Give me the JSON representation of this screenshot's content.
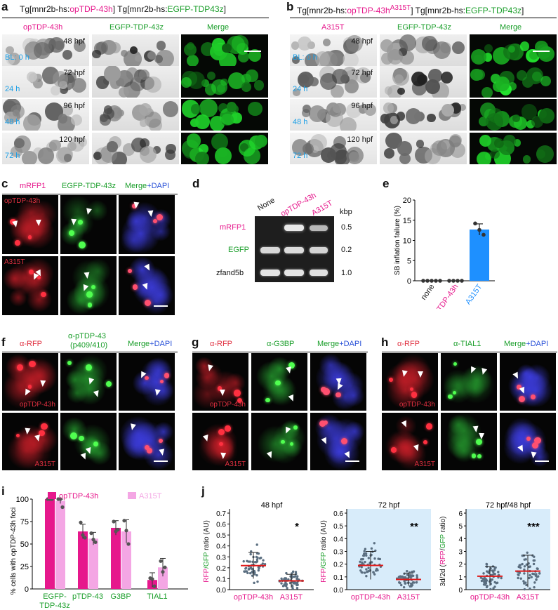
{
  "panels": {
    "a": {
      "letter": "a",
      "title_pre": "Tg[mnr2b-hs:",
      "title_red": "opTDP-43h",
      "title_mid": "] Tg[mnr2b-hs:",
      "title_green": "EGFP-TDP43z",
      "title_post": "]",
      "col1": "opTDP-43h",
      "col2": "EGFP-TDP-43z",
      "merge": "Merge",
      "rows": [
        {
          "hpf": "48 hpf",
          "time": "BL: 0 h"
        },
        {
          "hpf": "72 hpf",
          "time": "24 h"
        },
        {
          "hpf": "96 hpf",
          "time": "48 h"
        },
        {
          "hpf": "120 hpf",
          "time": "72 h"
        }
      ]
    },
    "b": {
      "letter": "b",
      "title_pre": "Tg[mnr2b-hs:",
      "title_red": "opTDP-43h",
      "title_sup": "A315T",
      "title_mid": "] Tg[mnr2b-hs:",
      "title_green": "EGFP-TDP43z",
      "title_post": "]",
      "col1": "A315T",
      "col2": "EGFP-TDP-43z",
      "merge": "Merge",
      "rows": [
        {
          "hpf": "48 hpf",
          "time": "BL: 0 h"
        },
        {
          "hpf": "72 hpf",
          "time": "24 h"
        },
        {
          "hpf": "96 hpf",
          "time": "48 h"
        },
        {
          "hpf": "120 hpf",
          "time": "72 h"
        }
      ]
    },
    "c": {
      "letter": "c",
      "col1": "mRFP1",
      "col2": "EGFP-TDP-43z",
      "merge_a": "Merge",
      "merge_b": "+DAPI",
      "row1": "opTDP-43h",
      "row2": "A315T"
    },
    "d": {
      "letter": "d",
      "lanes": [
        "None",
        "opTDP-43h",
        "A315T"
      ],
      "kbp": "kbp",
      "rows": [
        {
          "label": "mRFP1",
          "size": "0.5"
        },
        {
          "label": "EGFP",
          "size": "0.2"
        },
        {
          "label": "zfand5b",
          "size": "1.0"
        }
      ]
    },
    "f": {
      "letter": "f",
      "col1": "α-RFP",
      "col2a": "α-pTDP-43",
      "col2b": "(p409/410)",
      "merge_a": "Merge",
      "merge_b": "+DAPI",
      "row1": "opTDP-43h",
      "row2": "A315T"
    },
    "g": {
      "letter": "g",
      "col1": "α-RFP",
      "col2": "α-G3BP",
      "merge_a": "Merge",
      "merge_b": "+DAPI",
      "row1": "opTDP-43h",
      "row2": "A315T"
    },
    "h": {
      "letter": "h",
      "col1": "α-RFP",
      "col2": "α-TIAL1",
      "merge_a": "Merge",
      "merge_b": "+DAPI",
      "row1": "opTDP-43h",
      "row2": "A315T"
    },
    "j": {
      "letter": "j"
    }
  },
  "chart_data": [
    {
      "panel": "e",
      "type": "bar",
      "ylabel": "SB inflation failure (%)",
      "categories": [
        "none",
        "opTDP-43h",
        "A315T"
      ],
      "values": [
        0,
        0,
        12.7
      ],
      "points": [
        [
          0,
          0,
          0,
          0,
          0
        ],
        [
          0,
          0,
          0,
          0
        ],
        [
          14.2,
          12.6,
          11.4
        ]
      ],
      "error": [
        0,
        0,
        1.4
      ],
      "ylim": [
        0,
        20
      ],
      "yticks": [
        "0",
        "5",
        "10",
        "15",
        "20"
      ],
      "colors": {
        "none": "#111111",
        "opTDP-43h": "#e6188c",
        "A315T": "#1e90ff"
      }
    },
    {
      "panel": "i",
      "type": "bar",
      "ylabel": "% cells with opTDP-43h foci",
      "categories": [
        "EGFP-TDP-43z",
        "pTDP-43",
        "G3BP",
        "TIAL1"
      ],
      "cat_lines": [
        [
          "EGFP-",
          "TDP-43z"
        ],
        [
          "pTDP-43"
        ],
        [
          "G3BP"
        ],
        [
          "TIAL1"
        ]
      ],
      "series": [
        {
          "name": "opTDP-43h",
          "color": "#e6188c",
          "values": [
            100,
            64,
            68,
            10
          ],
          "error": [
            1,
            8,
            8,
            8
          ],
          "points": [
            [
              100,
              100,
              100
            ],
            [
              74,
              60,
              57
            ],
            [
              75,
              64,
              66
            ],
            [
              12,
              11,
              3
            ]
          ]
        },
        {
          "name": "A315T",
          "color": "#f4a6e4",
          "values": [
            98,
            56,
            64,
            24
          ],
          "error": [
            3,
            7,
            13,
            10
          ],
          "points": [
            [
              100,
              100,
              91
            ],
            [
              62,
              55,
              52
            ],
            [
              76,
              65,
              50
            ],
            [
              31,
              19,
              24
            ]
          ]
        }
      ],
      "ylim": [
        0,
        100
      ],
      "yticks": [
        "0",
        "25",
        "50",
        "75",
        "100"
      ]
    },
    {
      "panel": "j",
      "type": "scatter",
      "title": "48 hpf",
      "ylabel_a": "RFP",
      "ylabel_b": "/GFP",
      "ylabel_c": " ratio (AU)",
      "categories": [
        "opTDP-43h",
        "A315T"
      ],
      "means": [
        0.22,
        0.08
      ],
      "sd": [
        0.12,
        0.06
      ],
      "ylim": [
        0,
        0.7
      ],
      "yticks": [
        "0.0",
        "0.1",
        "0.2",
        "0.3",
        "0.4",
        "0.5",
        "0.6",
        "0.7"
      ],
      "significance": "*",
      "background": "#ffffff"
    },
    {
      "panel": "j",
      "type": "scatter",
      "title": "72 hpf",
      "ylabel_a": "RFP",
      "ylabel_b": "/GFP",
      "ylabel_c": " ratio (AU)",
      "categories": [
        "opTDP-43h",
        "A315T"
      ],
      "means": [
        0.19,
        0.08
      ],
      "sd": [
        0.11,
        0.05
      ],
      "ylim": [
        0,
        0.6
      ],
      "yticks": [
        "0.0",
        "0.1",
        "0.2",
        "0.3",
        "0.4",
        "0.5",
        "0.6"
      ],
      "significance": "**",
      "background": "#d8ecfa"
    },
    {
      "panel": "j",
      "type": "scatter",
      "title": "72 hpf/48 hpf",
      "ylabel_a": "3d/2d (",
      "ylabel_b": "RFP",
      "ylabel_c": "/",
      "ylabel_d": "GFP",
      "ylabel_e": " ratio)",
      "categories": [
        "opTDP-43h",
        "A315T"
      ],
      "means": [
        1.05,
        1.45
      ],
      "sd": [
        0.75,
        1.25
      ],
      "ylim": [
        0,
        6
      ],
      "yticks": [
        "0",
        "1",
        "2",
        "3",
        "4",
        "5",
        "6"
      ],
      "significance": "***",
      "background": "#d8ecfa"
    }
  ]
}
